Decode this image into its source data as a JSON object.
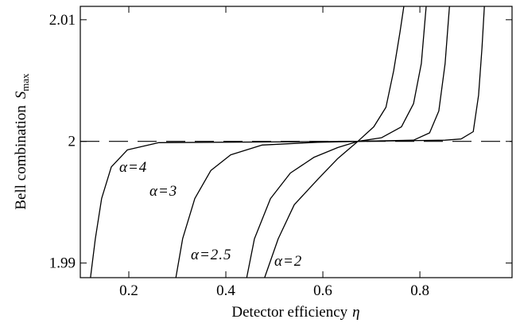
{
  "chart_data": {
    "type": "line",
    "xlabel": "Detector efficiency",
    "xlabel_var": "η",
    "ylabel": "Bell combination",
    "ylabel_var": "S",
    "ylabel_sub": "max",
    "xlim": [
      0.1,
      0.99
    ],
    "ylim": [
      1.9888,
      2.0111
    ],
    "xticks": [
      0.2,
      0.4,
      0.6,
      0.8
    ],
    "yticks": [
      1.99,
      2,
      2.01
    ],
    "hline": 2,
    "color": "#000000",
    "series": [
      {
        "name": "α=4",
        "x": [
          0.121,
          0.131,
          0.144,
          0.164,
          0.197,
          0.262,
          0.672,
          0.852,
          0.885,
          0.91,
          0.921,
          0.928,
          0.933
        ],
        "values": [
          1.9888,
          1.992,
          1.9953,
          1.9979,
          1.9993,
          1.9999,
          2,
          2.0001,
          2.0002,
          2.0008,
          2.0038,
          2.0077,
          2.0111
        ]
      },
      {
        "name": "α=3",
        "x": [
          0.297,
          0.311,
          0.336,
          0.369,
          0.41,
          0.475,
          0.59,
          0.672,
          0.787,
          0.82,
          0.839,
          0.852,
          0.861
        ],
        "values": [
          1.9888,
          1.992,
          1.9953,
          1.9976,
          1.9989,
          1.9997,
          1.99993,
          2,
          2.0001,
          2.0007,
          2.0025,
          2.0064,
          2.0111
        ]
      },
      {
        "name": "α=2.5",
        "x": [
          0.443,
          0.459,
          0.492,
          0.533,
          0.582,
          0.631,
          0.672,
          0.721,
          0.762,
          0.787,
          0.803,
          0.813
        ],
        "values": [
          1.9888,
          1.992,
          1.9953,
          1.9974,
          1.9987,
          1.9995,
          2,
          2.0003,
          2.0012,
          2.0031,
          2.0064,
          2.0111
        ]
      },
      {
        "name": "α=2",
        "x": [
          0.48,
          0.508,
          0.541,
          0.59,
          0.631,
          0.672,
          0.705,
          0.73,
          0.746,
          0.759,
          0.767
        ],
        "values": [
          1.9888,
          1.992,
          1.9948,
          1.9969,
          1.9986,
          2,
          2.0012,
          2.0028,
          2.0058,
          2.009,
          2.0111
        ]
      }
    ]
  }
}
